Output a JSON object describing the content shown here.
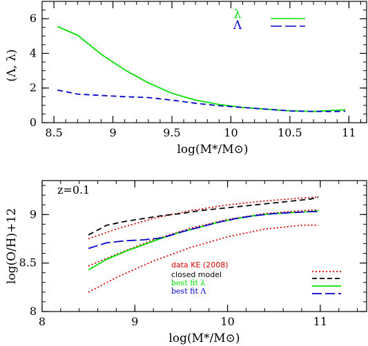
{
  "chart_data": [
    {
      "type": "line",
      "xlabel": "log(M*/M⊙)",
      "ylabel": "(Λ, λ)",
      "xlim": [
        8.4,
        11.15
      ],
      "ylim": [
        0,
        7
      ],
      "xticks": [
        8.5,
        9,
        9.5,
        10,
        10.5,
        11
      ],
      "yticks": [
        0,
        2,
        4,
        6
      ],
      "grid": false,
      "legend_position": "top-right",
      "series": [
        {
          "name": "λ",
          "color": "#00e000",
          "style": "solid",
          "x": [
            8.53,
            8.7,
            8.9,
            9.1,
            9.3,
            9.5,
            9.7,
            9.9,
            10.1,
            10.3,
            10.5,
            10.7,
            10.9,
            10.97
          ],
          "y": [
            5.55,
            5.05,
            3.95,
            3.05,
            2.3,
            1.7,
            1.3,
            1.05,
            0.88,
            0.78,
            0.68,
            0.65,
            0.72,
            0.74
          ]
        },
        {
          "name": "Λ",
          "color": "#0000cc",
          "style": "dashed",
          "x": [
            8.53,
            8.7,
            8.9,
            9.1,
            9.3,
            9.5,
            9.7,
            9.9,
            10.1,
            10.3,
            10.5,
            10.7,
            10.9,
            10.97
          ],
          "y": [
            1.88,
            1.65,
            1.57,
            1.5,
            1.45,
            1.3,
            1.12,
            0.98,
            0.88,
            0.78,
            0.68,
            0.65,
            0.65,
            0.66
          ]
        }
      ]
    },
    {
      "type": "line",
      "xlabel": "log(M*/M⊙)",
      "ylabel": "log(O/H)+12",
      "xlim": [
        8,
        11.5
      ],
      "ylim": [
        8,
        9.35
      ],
      "xticks": [
        8,
        9,
        10,
        11
      ],
      "yticks": [
        8,
        8.5,
        9
      ],
      "annotation": "z=0.1",
      "grid": false,
      "legend_position": "bottom-right",
      "series": [
        {
          "name": "data KE (2008)",
          "color": "#dd0000",
          "style": "dotted",
          "x": [
            8.5,
            8.8,
            9.2,
            9.6,
            10.0,
            10.4,
            10.8,
            10.98
          ],
          "y": [
            8.75,
            8.85,
            8.96,
            9.04,
            9.1,
            9.14,
            9.17,
            9.18
          ]
        },
        {
          "name": "data KE (2008)",
          "color": "#dd0000",
          "style": "dotted",
          "x": [
            8.5,
            8.8,
            9.2,
            9.6,
            10.0,
            10.4,
            10.8,
            10.98
          ],
          "y": [
            8.47,
            8.59,
            8.74,
            8.86,
            8.95,
            9.01,
            9.04,
            9.05
          ]
        },
        {
          "name": "data KE (2008)",
          "color": "#dd0000",
          "style": "dotted",
          "x": [
            8.5,
            8.8,
            9.2,
            9.6,
            10.0,
            10.4,
            10.8,
            10.98
          ],
          "y": [
            8.2,
            8.35,
            8.52,
            8.66,
            8.77,
            8.85,
            8.89,
            8.89
          ]
        },
        {
          "name": "closed model",
          "color": "#000000",
          "style": "dashed",
          "x": [
            8.5,
            8.7,
            8.9,
            9.1,
            9.3,
            9.5,
            9.7,
            9.9,
            10.1,
            10.3,
            10.5,
            10.7,
            10.9,
            10.98
          ],
          "y": [
            8.79,
            8.89,
            8.93,
            8.96,
            8.99,
            9.01,
            9.04,
            9.06,
            9.08,
            9.1,
            9.12,
            9.14,
            9.16,
            9.18
          ]
        },
        {
          "name": "best fit λ",
          "color": "#00e000",
          "style": "solid",
          "x": [
            8.5,
            8.7,
            8.9,
            9.1,
            9.3,
            9.5,
            9.7,
            9.9,
            10.1,
            10.3,
            10.5,
            10.7,
            10.9,
            10.98
          ],
          "y": [
            8.43,
            8.54,
            8.62,
            8.69,
            8.76,
            8.82,
            8.87,
            8.92,
            8.96,
            8.99,
            9.01,
            9.02,
            9.03,
            9.04
          ]
        },
        {
          "name": "best fit Λ",
          "color": "#0000cc",
          "style": "longdash",
          "x": [
            8.5,
            8.7,
            8.9,
            9.1,
            9.3,
            9.5,
            9.7,
            9.9,
            10.1,
            10.3,
            10.5,
            10.7,
            10.9,
            10.98
          ],
          "y": [
            8.65,
            8.71,
            8.73,
            8.74,
            8.76,
            8.82,
            8.87,
            8.92,
            8.96,
            8.99,
            9.01,
            9.02,
            9.03,
            9.03
          ]
        }
      ]
    }
  ]
}
